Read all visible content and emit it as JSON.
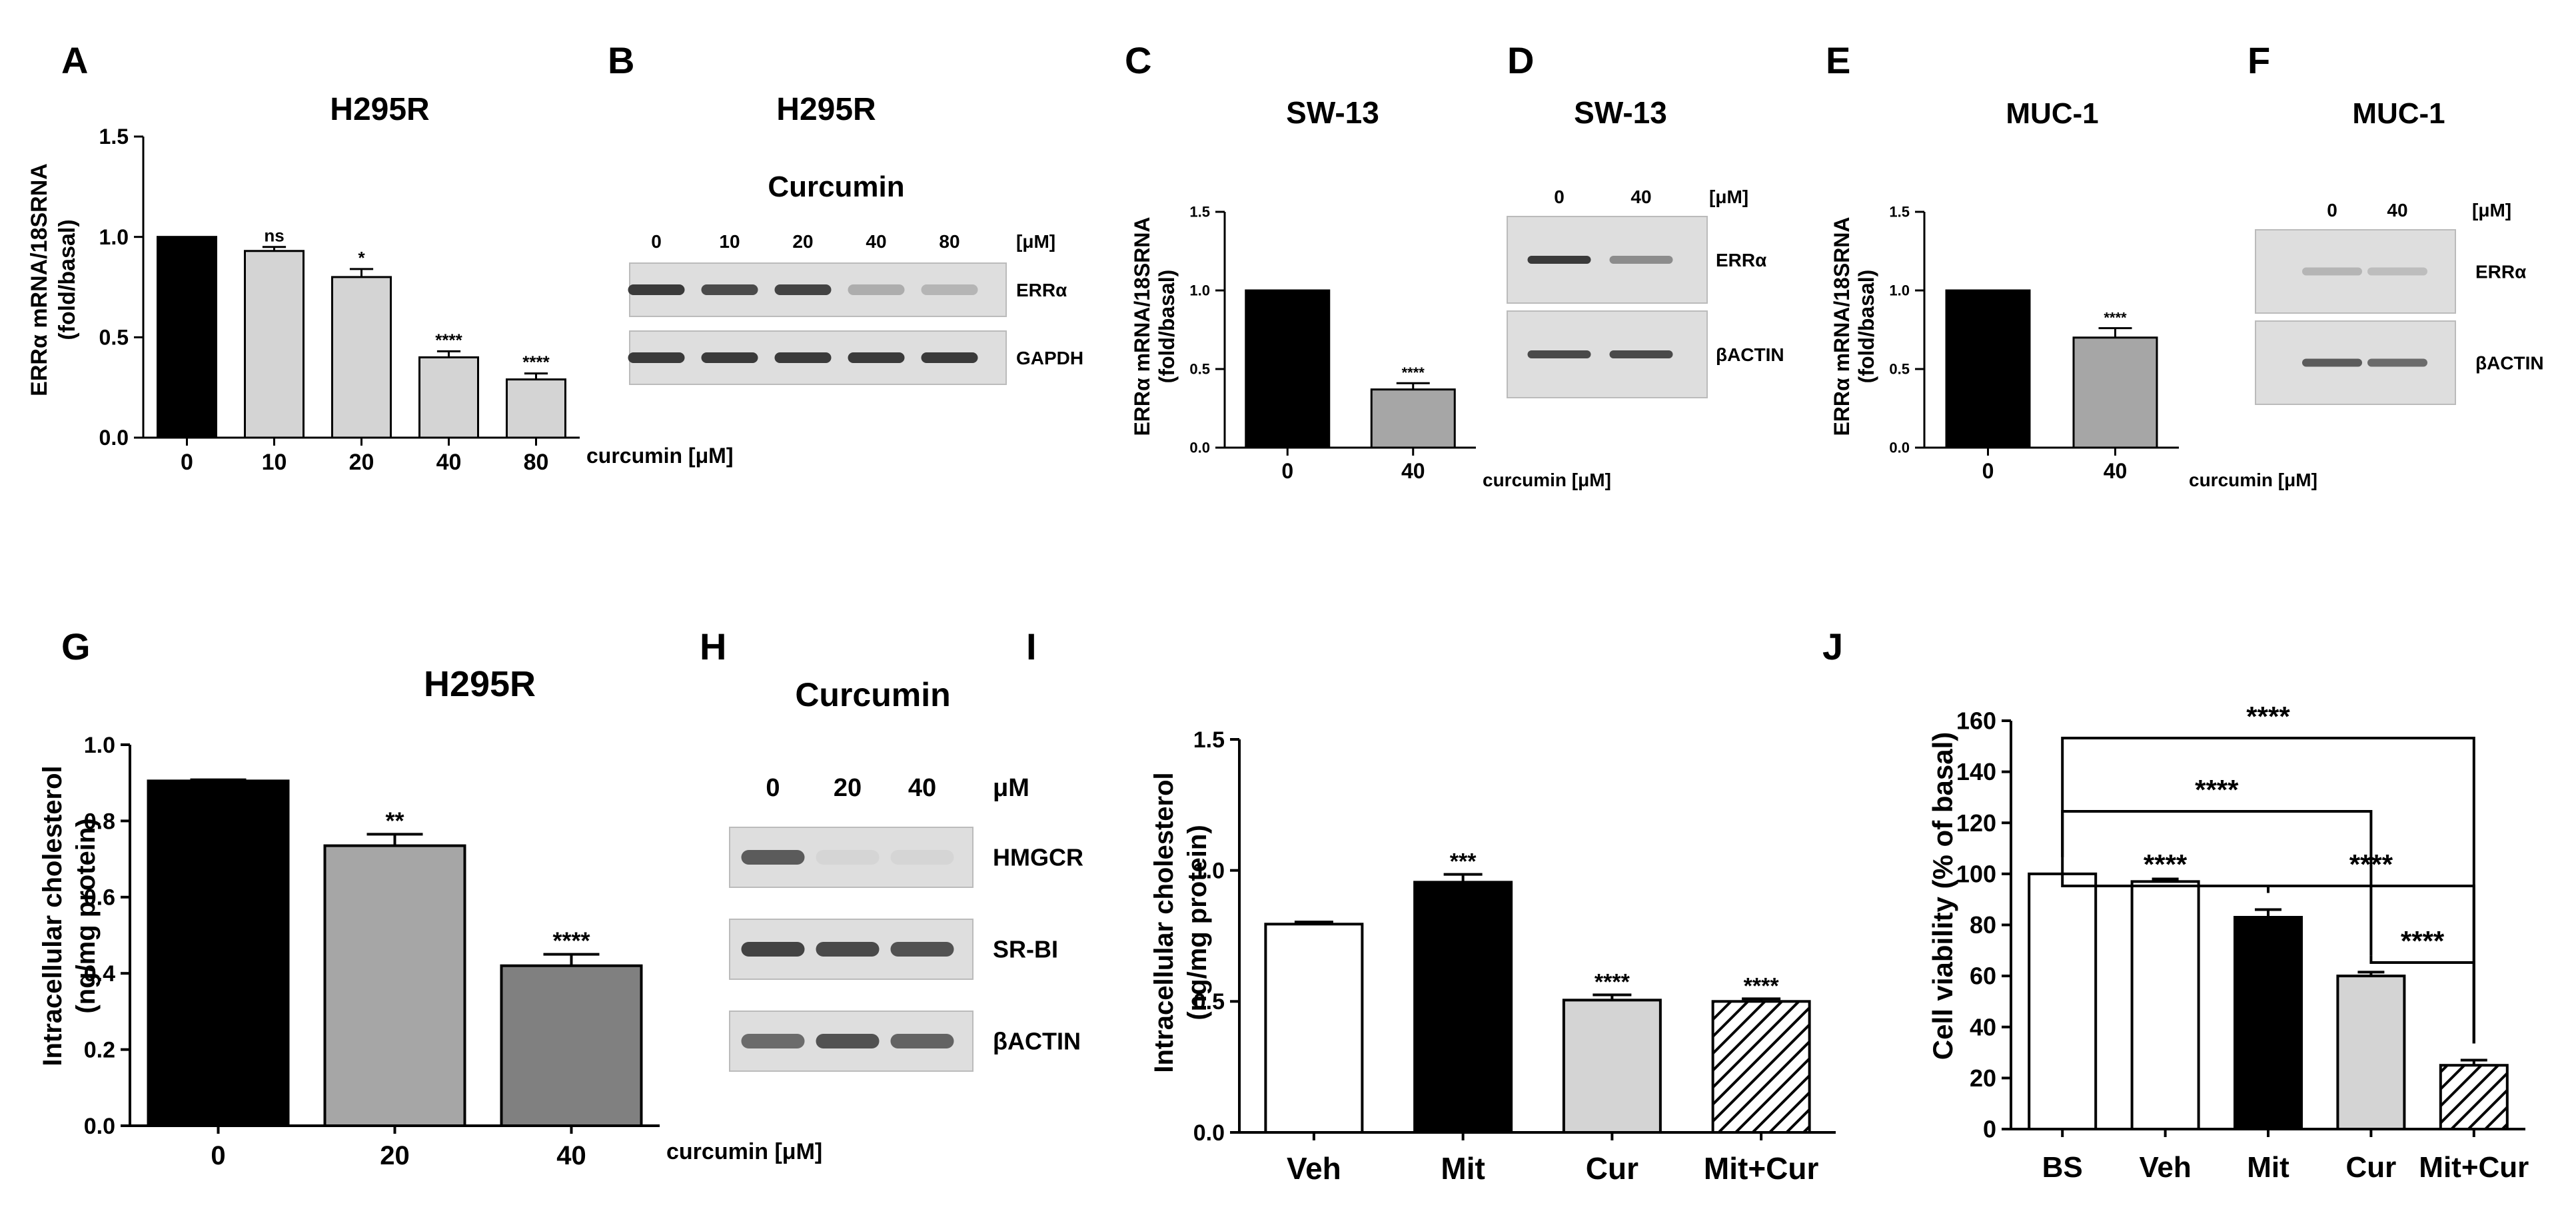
{
  "colors": {
    "black": "#000000",
    "light_gray": "#d4d4d4",
    "mid_gray": "#a6a6a6",
    "dark_gray": "#808080",
    "white": "#ffffff",
    "blot_bg": "#dedede",
    "band": "#3a3a3a"
  },
  "panels": {
    "A": {
      "letter": "A",
      "title": "H295R",
      "ylabel": "ERRα mRNA/18SRNA",
      "ylabel2": "(fold/basal)",
      "xlabel": "curcumin [μM]"
    },
    "B": {
      "letter": "B",
      "title": "H295R",
      "subtitle": "Curcumin",
      "lanes": [
        "0",
        "10",
        "20",
        "40",
        "80"
      ],
      "unit": "[μM]",
      "rows": [
        {
          "label": "ERRα",
          "intensity": [
            1,
            0.9,
            0.95,
            0.3,
            0.25
          ]
        },
        {
          "label": "GAPDH",
          "intensity": [
            1,
            1,
            1,
            1,
            1
          ]
        }
      ]
    },
    "C": {
      "letter": "C",
      "title": "SW-13",
      "ylabel": "ERRα mRNA/18SRNA",
      "ylabel2": "(fold/basal)",
      "xlabel": "curcumin [μM]"
    },
    "D": {
      "letter": "D",
      "title": "SW-13",
      "lanes": [
        "0",
        "40"
      ],
      "unit": "[μM]",
      "rows": [
        {
          "label": "ERRα",
          "intensity": [
            1,
            0.5
          ]
        },
        {
          "label": "βACTIN",
          "intensity": [
            0.9,
            0.9
          ]
        }
      ]
    },
    "E": {
      "letter": "E",
      "title": "MUC-1",
      "ylabel": "ERRα mRNA/18SRNA",
      "ylabel2": "(fold/basal)",
      "xlabel": "curcumin [μM]"
    },
    "F": {
      "letter": "F",
      "title": "MUC-1",
      "lanes": [
        "0",
        "40"
      ],
      "unit": "[μM]",
      "rows": [
        {
          "label": "ERRα",
          "intensity": [
            0.25,
            0.2
          ]
        },
        {
          "label": "βACTIN",
          "intensity": [
            0.8,
            0.7
          ]
        }
      ]
    },
    "G": {
      "letter": "G",
      "title": "H295R",
      "ylabel": "Intracellular cholesterol",
      "ylabel2": "(ng/mg protein)",
      "xlabel": "curcumin [μM]"
    },
    "H": {
      "letter": "H",
      "title": "Curcumin",
      "lanes": [
        "0",
        "20",
        "40"
      ],
      "unit": "μM",
      "rows": [
        {
          "label": "HMGCR",
          "intensity": [
            0.8,
            0.05,
            0.05
          ]
        },
        {
          "label": "SR-BI",
          "intensity": [
            0.95,
            0.9,
            0.85
          ]
        },
        {
          "label": "βACTIN",
          "intensity": [
            0.7,
            0.85,
            0.75
          ]
        }
      ]
    },
    "I": {
      "letter": "I",
      "ylabel": "Intracellular cholesterol",
      "ylabel2": "(ng/mg protein)"
    },
    "J": {
      "letter": "J",
      "ylabel": "Cell viability (% of basal)"
    }
  },
  "chart_data": [
    {
      "panel": "A",
      "type": "bar",
      "categories": [
        "0",
        "10",
        "20",
        "40",
        "80"
      ],
      "values": [
        1.0,
        0.93,
        0.8,
        0.4,
        0.29
      ],
      "errors": [
        0,
        0.02,
        0.04,
        0.03,
        0.03
      ],
      "significance": [
        "",
        "ns",
        "*",
        "****",
        "****"
      ],
      "fills": [
        "black",
        "light_gray",
        "light_gray",
        "light_gray",
        "light_gray"
      ],
      "ylim": [
        0,
        1.5
      ],
      "yticks": [
        "0.0",
        "0.5",
        "1.0",
        "1.5"
      ]
    },
    {
      "panel": "C",
      "type": "bar",
      "categories": [
        "0",
        "40"
      ],
      "values": [
        1.0,
        0.37
      ],
      "errors": [
        0,
        0.04
      ],
      "significance": [
        "",
        "****"
      ],
      "fills": [
        "black",
        "mid_gray"
      ],
      "ylim": [
        0,
        1.5
      ],
      "yticks": [
        "0.0",
        "0.5",
        "1.0",
        "1.5"
      ]
    },
    {
      "panel": "E",
      "type": "bar",
      "categories": [
        "0",
        "40"
      ],
      "values": [
        1.0,
        0.7
      ],
      "errors": [
        0,
        0.06
      ],
      "significance": [
        "",
        "****"
      ],
      "fills": [
        "black",
        "mid_gray"
      ],
      "ylim": [
        0,
        1.5
      ],
      "yticks": [
        "0.0",
        "0.5",
        "1.0",
        "1.5"
      ]
    },
    {
      "panel": "G",
      "type": "bar",
      "categories": [
        "0",
        "20",
        "40"
      ],
      "values": [
        0.905,
        0.735,
        0.42
      ],
      "errors": [
        0.003,
        0.03,
        0.03
      ],
      "significance": [
        "",
        "**",
        "****"
      ],
      "fills": [
        "black",
        "mid_gray",
        "dark_gray"
      ],
      "ylim": [
        0,
        1.0
      ],
      "yticks": [
        "0.0",
        "0.2",
        "0.4",
        "0.6",
        "0.8",
        "1.0"
      ]
    },
    {
      "panel": "I",
      "type": "bar",
      "categories": [
        "Veh",
        "Mit",
        "Cur",
        "Mit+Cur"
      ],
      "values": [
        0.795,
        0.955,
        0.505,
        0.5
      ],
      "errors": [
        0.008,
        0.03,
        0.02,
        0.01
      ],
      "significance": [
        "",
        "***",
        "****",
        "****"
      ],
      "fills": [
        "white",
        "black",
        "light_gray",
        "hatch"
      ],
      "ylim": [
        0,
        1.5
      ],
      "yticks": [
        "0.0",
        "0.5",
        "1.0",
        "1.5"
      ]
    },
    {
      "panel": "J",
      "type": "bar",
      "categories": [
        "BS",
        "Veh",
        "Mit",
        "Cur",
        "Mit+Cur"
      ],
      "values": [
        100,
        97,
        83,
        60,
        25
      ],
      "errors": [
        0,
        1,
        3,
        1.5,
        2
      ],
      "fills": [
        "white",
        "white",
        "black",
        "light_gray",
        "hatch"
      ],
      "ylim": [
        0,
        160
      ],
      "yticks": [
        "0",
        "20",
        "40",
        "60",
        "80",
        "100",
        "120",
        "140",
        "160"
      ],
      "comparisons": [
        {
          "from": 0,
          "to": 4,
          "label": "****"
        },
        {
          "from": 0,
          "to": 3,
          "label": "****"
        },
        {
          "from": 0,
          "to": 2,
          "label": "****"
        },
        {
          "from": 2,
          "to": 4,
          "label": "****"
        },
        {
          "from": 3,
          "to": 4,
          "label": "****"
        }
      ]
    }
  ]
}
